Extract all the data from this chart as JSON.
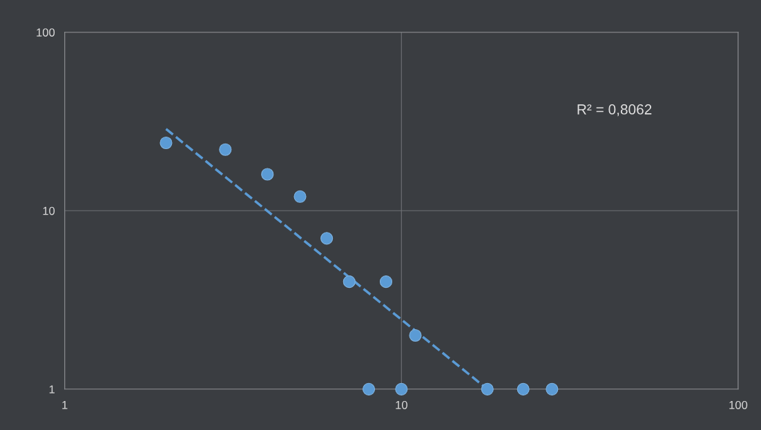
{
  "chart_data": {
    "type": "scatter",
    "log": "xy",
    "grid": true,
    "legend": false,
    "marker": "circle",
    "xlim": [
      1,
      100
    ],
    "xticks": [
      1,
      10,
      100
    ],
    "ylim": [
      1,
      100
    ],
    "yticks": [
      1,
      10,
      100
    ],
    "annotations": [
      "R² = 0,8062"
    ],
    "series": [
      {
        "color": "#5b9bd5",
        "x": [
          2,
          3,
          4,
          5,
          6,
          7,
          8,
          9,
          10,
          11,
          18,
          23,
          28
        ],
        "values": [
          24,
          22,
          16,
          12,
          7,
          4,
          1,
          4,
          1,
          2,
          1,
          1,
          1
        ]
      },
      {
        "type": "line",
        "marker": "none",
        "color": "#5b9bd5",
        "line_style": "dashed",
        "x": [
          2,
          18
        ],
        "values": [
          28.7,
          1
        ]
      }
    ]
  }
}
